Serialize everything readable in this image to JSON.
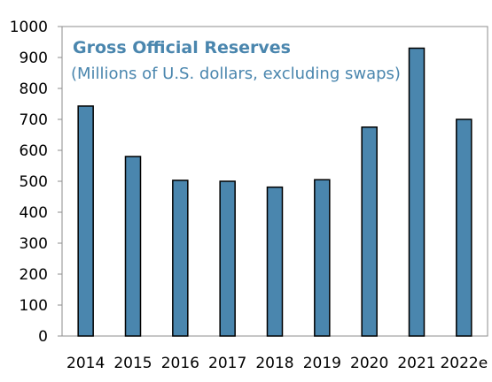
{
  "chart_data": {
    "type": "bar",
    "title": "Gross Official Reserves",
    "subtitle": "(Millions of U.S. dollars, excluding swaps)",
    "xlabel": "",
    "ylabel": "",
    "categories": [
      "2014",
      "2015",
      "2016",
      "2017",
      "2018",
      "2019",
      "2020",
      "2021",
      "2022e"
    ],
    "values": [
      743,
      580,
      503,
      500,
      481,
      505,
      675,
      930,
      700
    ],
    "ylim": [
      0,
      1000
    ],
    "yticks": [
      "0",
      "100",
      "200",
      "300",
      "400",
      "500",
      "600",
      "700",
      "800",
      "900",
      "1000"
    ],
    "grid": false,
    "legend": "none",
    "colors": {
      "bar_fill": "#4a86ae",
      "bar_stroke": "#000000",
      "title_color": "#4a86ae",
      "axis_color": "#8c8c8c"
    }
  }
}
